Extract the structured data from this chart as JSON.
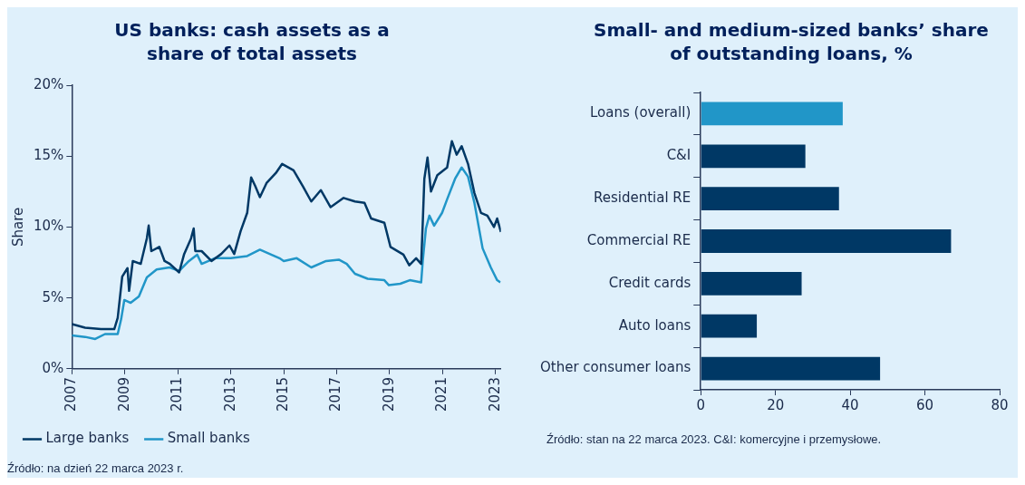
{
  "chart_data": [
    {
      "type": "line",
      "title": "US banks: cash assets as a share of total assets",
      "ylabel": "Share",
      "xlim": [
        2007,
        2023.2
      ],
      "xticks": [
        2007,
        2009,
        2011,
        2013,
        2015,
        2017,
        2019,
        2021,
        2023
      ],
      "ylim": [
        0,
        20
      ],
      "yticks": [
        {
          "value": 0,
          "label": "0%"
        },
        {
          "value": 5,
          "label": "5%"
        },
        {
          "value": 10,
          "label": "10%"
        },
        {
          "value": 15,
          "label": "15%"
        },
        {
          "value": 20,
          "label": "20%"
        }
      ],
      "grid": false,
      "legend": "bottom",
      "marker": "none",
      "line_style": "solid",
      "series": [
        {
          "name": "Large banks",
          "color": "#003865",
          "x": [
            2007,
            2007.5,
            2008.1,
            2008.6,
            2008.73,
            2008.9,
            2009.1,
            2009.16,
            2009.3,
            2009.6,
            2009.83,
            2009.9,
            2010.0,
            2010.3,
            2010.5,
            2010.7,
            2011.05,
            2011.24,
            2011.5,
            2011.6,
            2011.66,
            2011.9,
            2012.27,
            2012.64,
            2012.95,
            2013.13,
            2013.37,
            2013.62,
            2013.77,
            2013.92,
            2014.1,
            2014.35,
            2014.7,
            2014.94,
            2015.37,
            2015.73,
            2016.04,
            2016.4,
            2016.77,
            2017.26,
            2017.69,
            2018.05,
            2018.3,
            2018.8,
            2019.03,
            2019.52,
            2019.74,
            2020.0,
            2020.19,
            2020.25,
            2020.31,
            2020.43,
            2020.56,
            2020.8,
            2021.17,
            2021.35,
            2021.53,
            2021.72,
            2021.96,
            2022.2,
            2022.45,
            2022.69,
            2022.94,
            2023.06,
            2023.2
          ],
          "values": [
            3.15,
            2.9,
            2.8,
            2.8,
            3.6,
            6.5,
            7.1,
            5.5,
            7.6,
            7.4,
            9.2,
            10.1,
            8.3,
            8.6,
            7.6,
            7.4,
            6.8,
            8.1,
            9.2,
            9.9,
            8.3,
            8.3,
            7.6,
            8.1,
            8.7,
            8.1,
            9.7,
            11.0,
            13.5,
            12.9,
            12.1,
            13.1,
            13.8,
            14.45,
            14.0,
            12.85,
            11.8,
            12.6,
            11.4,
            12.05,
            11.8,
            11.7,
            10.6,
            10.3,
            8.6,
            8.05,
            7.3,
            7.8,
            7.4,
            10.3,
            13.4,
            14.9,
            12.5,
            13.65,
            14.2,
            16.05,
            15.1,
            15.7,
            14.45,
            12.4,
            11.0,
            10.8,
            10.0,
            10.6,
            9.65
          ]
        },
        {
          "name": "Small banks",
          "color": "#2196c8",
          "x": [
            2007,
            2007.5,
            2007.88,
            2008.25,
            2008.73,
            2008.86,
            2008.98,
            2009.22,
            2009.53,
            2009.83,
            2010.2,
            2010.69,
            2011.05,
            2011.42,
            2011.73,
            2011.9,
            2012.4,
            2013.0,
            2013.62,
            2014.1,
            2014.84,
            2015.0,
            2015.49,
            2016.04,
            2016.6,
            2017.08,
            2017.38,
            2017.69,
            2018.17,
            2018.8,
            2018.97,
            2019.4,
            2019.76,
            2020.19,
            2020.25,
            2020.37,
            2020.5,
            2020.68,
            2020.98,
            2021.17,
            2021.47,
            2021.72,
            2021.96,
            2022.2,
            2022.51,
            2022.82,
            2023.06,
            2023.18
          ],
          "values": [
            2.35,
            2.25,
            2.1,
            2.45,
            2.45,
            3.5,
            4.85,
            4.65,
            5.1,
            6.45,
            7.0,
            7.15,
            6.9,
            7.6,
            8.05,
            7.4,
            7.8,
            7.8,
            7.95,
            8.4,
            7.8,
            7.6,
            7.8,
            7.15,
            7.6,
            7.7,
            7.4,
            6.7,
            6.35,
            6.25,
            5.9,
            6.0,
            6.25,
            6.1,
            7.6,
            9.9,
            10.8,
            10.1,
            11.0,
            11.95,
            13.4,
            14.2,
            13.55,
            11.7,
            8.5,
            7.15,
            6.25,
            6.1
          ]
        }
      ],
      "annotations": [
        "Źródło: na dzień 22 marca 2023 r."
      ]
    },
    {
      "type": "bar",
      "orientation": "horizontal",
      "title": "Small- and medium-sized banks’ share of outstanding loans, %",
      "categories": [
        "Loans (overall)",
        "C&I",
        "Residential RE",
        "Commercial RE",
        "Credit cards",
        "Auto loans",
        "Other consumer loans"
      ],
      "values": [
        38,
        28,
        37,
        67,
        27,
        15,
        48
      ],
      "colors": [
        "#2196c8",
        "#003865",
        "#003865",
        "#003865",
        "#003865",
        "#003865",
        "#003865"
      ],
      "xlim": [
        0,
        80
      ],
      "xticks": [
        0,
        20,
        40,
        60,
        80
      ],
      "grid": false,
      "legend": false,
      "annotations": [
        "Źródło: stan na 22 marca 2023. C&I: komercyjne i przemysłowe."
      ]
    }
  ]
}
